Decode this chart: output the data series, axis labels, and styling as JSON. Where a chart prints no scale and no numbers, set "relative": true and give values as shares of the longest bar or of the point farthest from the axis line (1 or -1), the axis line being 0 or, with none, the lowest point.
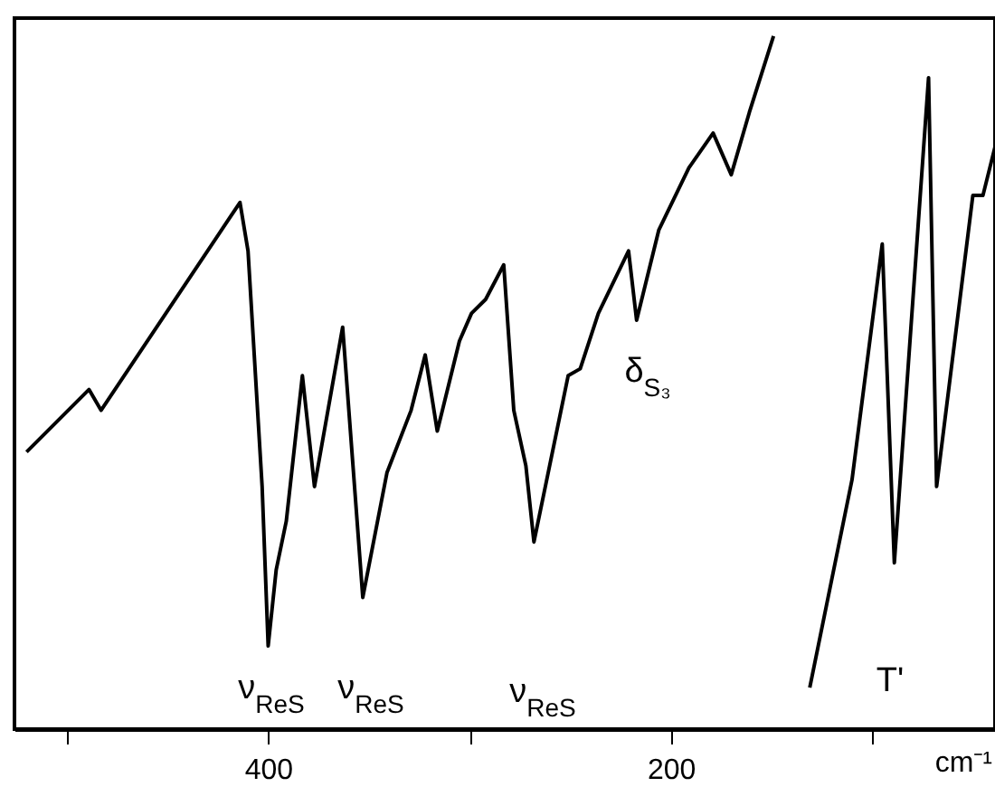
{
  "chart_data": {
    "type": "line",
    "relative": true,
    "xlabel": "cm⁻¹",
    "xlim": [
      526,
      39
    ],
    "xticks": [
      {
        "value": 500,
        "label": null
      },
      400,
      {
        "value": 300,
        "label": null
      },
      200,
      {
        "value": 100,
        "label": null
      }
    ],
    "series": [
      {
        "color": "#000000",
        "x": [
          520,
          489,
          483,
          414,
          410,
          403,
          400,
          396,
          391,
          383,
          377,
          363,
          353,
          341,
          329,
          322,
          316,
          305,
          299,
          292,
          283,
          278,
          272,
          268,
          251,
          245,
          236,
          221,
          217,
          206,
          191,
          179,
          170,
          161,
          149
        ],
        "values": [
          0.4,
          0.49,
          0.46,
          0.76,
          0.69,
          0.35,
          0.12,
          0.23,
          0.3,
          0.51,
          0.35,
          0.58,
          0.19,
          0.37,
          0.46,
          0.54,
          0.43,
          0.56,
          0.6,
          0.62,
          0.67,
          0.46,
          0.38,
          0.27,
          0.51,
          0.52,
          0.6,
          0.69,
          0.59,
          0.72,
          0.81,
          0.86,
          0.8,
          0.89,
          1.0
        ]
      },
      {
        "color": "#000000",
        "x": [
          131,
          110,
          95,
          89,
          72,
          68,
          50,
          45,
          39
        ],
        "values": [
          0.06,
          0.36,
          0.7,
          0.24,
          0.94,
          0.35,
          0.77,
          0.77,
          0.84
        ]
      }
    ],
    "annotations": [
      "ν$_{ReS}$",
      "ν$_{ReS}$",
      "ν$_{ReS}$",
      "δ$_{S₃}$",
      "T'"
    ]
  }
}
